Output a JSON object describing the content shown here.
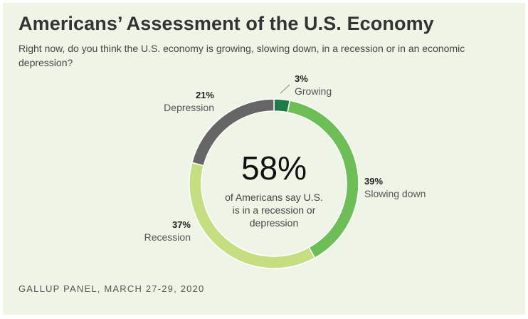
{
  "title": "Americans’ Assessment of the U.S. Economy",
  "subtitle": "Right now, do you think the U.S. economy is growing, slowing down, in a recession or in an economic depression?",
  "source": "GALLUP PANEL, MARCH 27-29, 2020",
  "center": {
    "value": "58%",
    "note_lines": [
      "of Americans say U.S.",
      "is in a recession or",
      "depression"
    ]
  },
  "chart_data": {
    "type": "pie",
    "variant": "donut",
    "categories": [
      "Growing",
      "Slowing down",
      "Recession",
      "Depression"
    ],
    "values": [
      3,
      39,
      37,
      21
    ],
    "value_labels": [
      "3%",
      "39%",
      "37%",
      "21%"
    ],
    "colors": [
      "#1e7a47",
      "#6ebe58",
      "#c5de82",
      "#666666"
    ]
  }
}
